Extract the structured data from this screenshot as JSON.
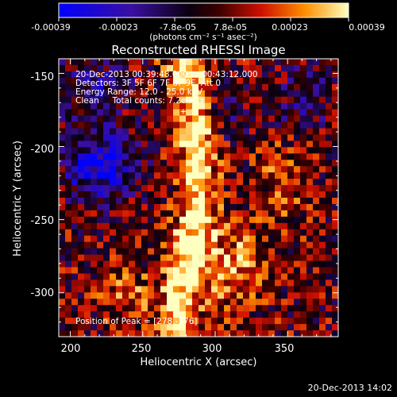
{
  "chart_data": {
    "type": "heatmap",
    "title": "Reconstructed RHESSI Image",
    "xlabel": "Heliocentric X (arcsec)",
    "ylabel": "Heliocentric Y (arcsec)",
    "xlim": [
      192,
      385
    ],
    "ylim": [
      -330,
      -140
    ],
    "xticks": [
      "200",
      "250",
      "300",
      "350"
    ],
    "yticks": [
      "-150",
      "-200",
      "-250",
      "-300"
    ],
    "colorbar": {
      "ticks": [
        "-0.00039",
        "-0.00023",
        "-7.8e-05",
        "7.8e-05",
        "0.00023",
        "0.00039"
      ],
      "range": [
        -0.00039,
        0.00039
      ],
      "unit_label": "(photons cm⁻² s⁻¹ asec⁻²)"
    },
    "annotations": {
      "time_range": "20-Dec-2013 00:39:48.000 to 00:43:12.000",
      "detectors": "Detectors: 3F 5F 6F 7F 8F 9F, Att 0",
      "energy": "Energy Range: 12.0 - 25.0 keV",
      "clean": "Clean     Total counts: 7.2e+03",
      "peak": "Position of Peak = [278,-176]"
    },
    "peak": {
      "x": 278,
      "y": -176
    },
    "grid": false,
    "footer_timestamp": "20-Dec-2013 14:02"
  }
}
